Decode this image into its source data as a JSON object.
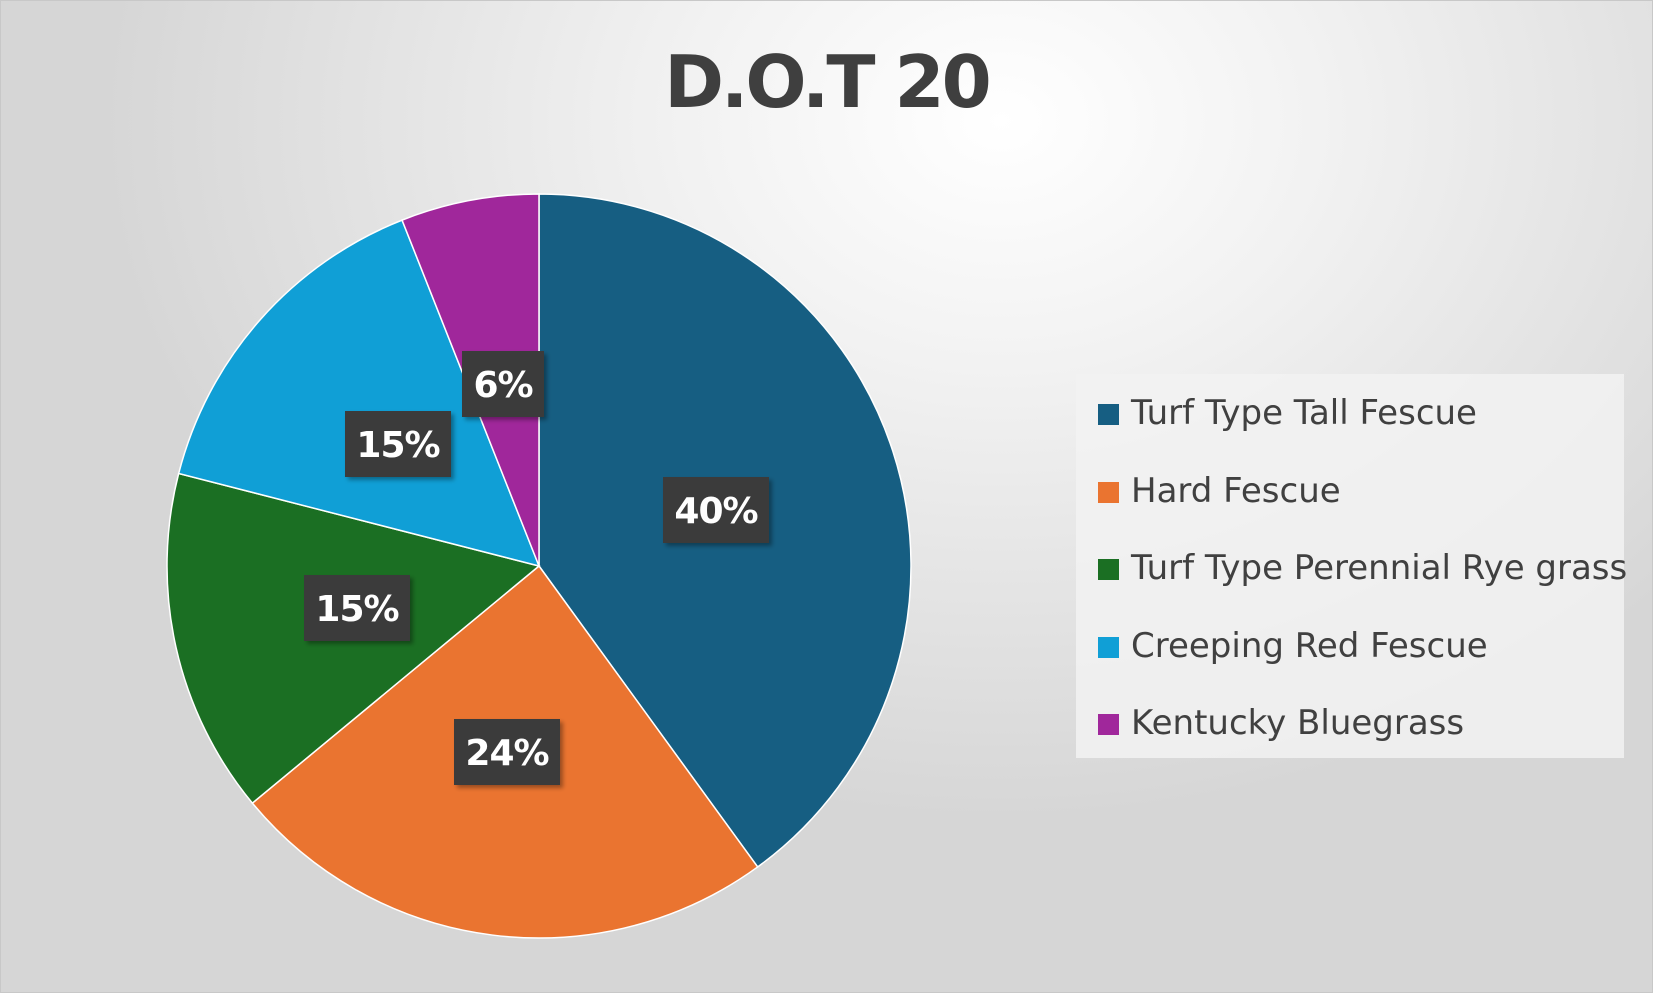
{
  "chart_data": {
    "type": "pie",
    "title": "D.O.T 20",
    "categories": [
      "Turf Type Tall Fescue",
      "Hard Fescue",
      "Turf Type Perennial Rye grass",
      "Creeping Red Fescue",
      "Kentucky Bluegrass"
    ],
    "values": [
      40,
      24,
      15,
      15,
      6
    ],
    "labels": [
      "40%",
      "24%",
      "15%",
      "15%",
      "6%"
    ],
    "colors": [
      "#165e82",
      "#ea7430",
      "#1b6f23",
      "#109fd6",
      "#a0279b"
    ],
    "start_angle": "12 o'clock",
    "direction": "clockwise",
    "legend_position": "right"
  }
}
